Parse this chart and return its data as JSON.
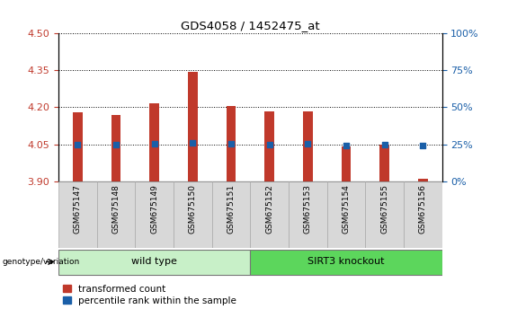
{
  "title": "GDS4058 / 1452475_at",
  "samples": [
    "GSM675147",
    "GSM675148",
    "GSM675149",
    "GSM675150",
    "GSM675151",
    "GSM675152",
    "GSM675153",
    "GSM675154",
    "GSM675155",
    "GSM675156"
  ],
  "red_values": [
    4.18,
    4.17,
    4.215,
    4.345,
    4.205,
    4.185,
    4.185,
    4.04,
    4.05,
    3.91
  ],
  "blue_values": [
    25.0,
    24.5,
    25.2,
    25.8,
    25.2,
    24.8,
    25.2,
    24.3,
    24.8,
    24.3
  ],
  "ylim_left": [
    3.9,
    4.5
  ],
  "yticks_left": [
    3.9,
    4.05,
    4.2,
    4.35,
    4.5
  ],
  "yticks_right": [
    0,
    25,
    50,
    75,
    100
  ],
  "ylim_right": [
    0,
    100
  ],
  "bar_color": "#c0392b",
  "dot_color": "#1a5fa8",
  "wild_type_color": "#c8f0c8",
  "knockout_color": "#5cd65c",
  "tick_label_color_left": "#c0392b",
  "tick_label_color_right": "#1a5fa8",
  "cell_bg_color": "#d8d8d8",
  "cell_edge_color": "#aaaaaa"
}
